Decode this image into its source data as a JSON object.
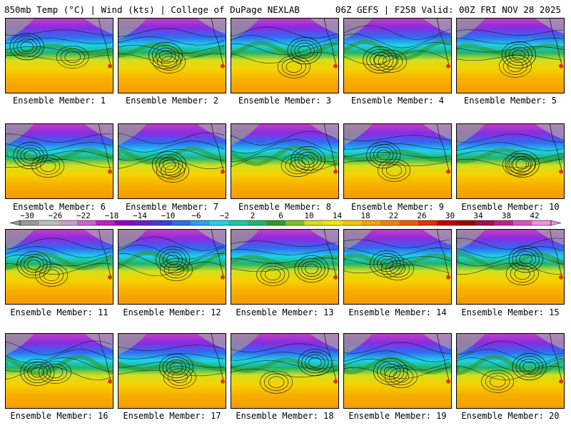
{
  "header": {
    "left_title": "850mb Temp (°C) | Wind (kts) | College of DuPage NEXLAB",
    "right_title": "06Z GEFS | F258 Valid: 00Z FRI NOV 28 2025"
  },
  "colorbar": {
    "tick_labels": [
      "−30",
      "−26",
      "−22",
      "−18",
      "−14",
      "−10",
      "−6",
      "−2",
      "2",
      "6",
      "10",
      "14",
      "18",
      "22",
      "26",
      "30",
      "34",
      "38",
      "42"
    ],
    "colors": [
      "#9a9a9a",
      "#bdbdbd",
      "#c8a0c8",
      "#d060d0",
      "#c020c0",
      "#8f00c8",
      "#6a1fd0",
      "#3b3be0",
      "#2f6cf0",
      "#2aa0f5",
      "#1fd2e8",
      "#17c8a0",
      "#1fb46a",
      "#2e9a2e",
      "#7ac21e",
      "#d4e01e",
      "#f5e600",
      "#f7c400",
      "#f7a000",
      "#f57f00",
      "#ee5a00",
      "#e03000",
      "#c80000",
      "#a00000",
      "#a0104a",
      "#c0208a",
      "#e050c0",
      "#f090e0"
    ]
  },
  "members": [
    {
      "label": "Ensemble Member: 1"
    },
    {
      "label": "Ensemble Member: 2"
    },
    {
      "label": "Ensemble Member: 3"
    },
    {
      "label": "Ensemble Member: 4"
    },
    {
      "label": "Ensemble Member: 5"
    },
    {
      "label": "Ensemble Member: 6"
    },
    {
      "label": "Ensemble Member: 7"
    },
    {
      "label": "Ensemble Member: 8"
    },
    {
      "label": "Ensemble Member: 9"
    },
    {
      "label": "Ensemble Member: 10"
    },
    {
      "label": "Ensemble Member: 11"
    },
    {
      "label": "Ensemble Member: 12"
    },
    {
      "label": "Ensemble Member: 13"
    },
    {
      "label": "Ensemble Member: 14"
    },
    {
      "label": "Ensemble Member: 15"
    },
    {
      "label": "Ensemble Member: 16"
    },
    {
      "label": "Ensemble Member: 17"
    },
    {
      "label": "Ensemble Member: 18"
    },
    {
      "label": "Ensemble Member: 19"
    },
    {
      "label": "Ensemble Member: 20"
    }
  ]
}
